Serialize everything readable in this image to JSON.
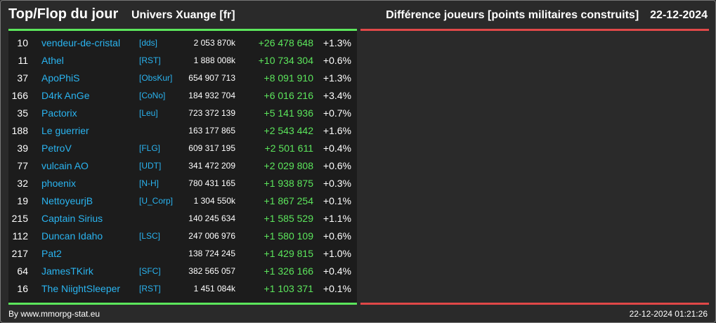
{
  "header": {
    "title": "Top/Flop du jour",
    "universe": "Univers Xuange [fr]",
    "metric": "Différence joueurs [points militaires construits]",
    "date": "22-12-2024"
  },
  "rows": [
    {
      "rank": "10",
      "name": "vendeur-de-cristal",
      "tag": "[dds]",
      "points": "2 053 870k",
      "diff": "+26 478 648",
      "pct": "+1.3%"
    },
    {
      "rank": "11",
      "name": "Athel",
      "tag": "[RST]",
      "points": "1 888 008k",
      "diff": "+10 734 304",
      "pct": "+0.6%"
    },
    {
      "rank": "37",
      "name": "ApoPhiS",
      "tag": "[ObsKur]",
      "points": "654 907 713",
      "diff": "+8 091 910",
      "pct": "+1.3%"
    },
    {
      "rank": "166",
      "name": "D4rk AnGe",
      "tag": "[CoNo]",
      "points": "184 932 704",
      "diff": "+6 016 216",
      "pct": "+3.4%"
    },
    {
      "rank": "35",
      "name": "Pactorix",
      "tag": "[Leu]",
      "points": "723 372 139",
      "diff": "+5 141 936",
      "pct": "+0.7%"
    },
    {
      "rank": "188",
      "name": "Le guerrier",
      "tag": "",
      "points": "163 177 865",
      "diff": "+2 543 442",
      "pct": "+1.6%"
    },
    {
      "rank": "39",
      "name": "PetroV",
      "tag": "[FLG]",
      "points": "609 317 195",
      "diff": "+2 501 611",
      "pct": "+0.4%"
    },
    {
      "rank": "77",
      "name": "vulcain AO",
      "tag": "[UDT]",
      "points": "341 472 209",
      "diff": "+2 029 808",
      "pct": "+0.6%"
    },
    {
      "rank": "32",
      "name": "phoenix",
      "tag": "[N-H]",
      "points": "780 431 165",
      "diff": "+1 938 875",
      "pct": "+0.3%"
    },
    {
      "rank": "19",
      "name": "NettoyeurjB",
      "tag": "[U_Corp]",
      "points": "1 304 550k",
      "diff": "+1 867 254",
      "pct": "+0.1%"
    },
    {
      "rank": "215",
      "name": "Captain Sirius",
      "tag": "",
      "points": "140 245 634",
      "diff": "+1 585 529",
      "pct": "+1.1%"
    },
    {
      "rank": "112",
      "name": "Duncan Idaho",
      "tag": "[LSC]",
      "points": "247 006 976",
      "diff": "+1 580 109",
      "pct": "+0.6%"
    },
    {
      "rank": "217",
      "name": "Pat2",
      "tag": "",
      "points": "138 724 245",
      "diff": "+1 429 815",
      "pct": "+1.0%"
    },
    {
      "rank": "64",
      "name": "JamesTKirk",
      "tag": "[SFC]",
      "points": "382 565 057",
      "diff": "+1 326 166",
      "pct": "+0.4%"
    },
    {
      "rank": "16",
      "name": "The NiightSleeper",
      "tag": "[RST]",
      "points": "1 451 084k",
      "diff": "+1 103 371",
      "pct": "+0.1%"
    }
  ],
  "footer": {
    "credit": "By www.mmorpg-stat.eu",
    "timestamp": "22-12-2024 01:21:26"
  },
  "colors": {
    "top": "#5ce65c",
    "flop": "#e04848",
    "link": "#2ab4f0"
  }
}
